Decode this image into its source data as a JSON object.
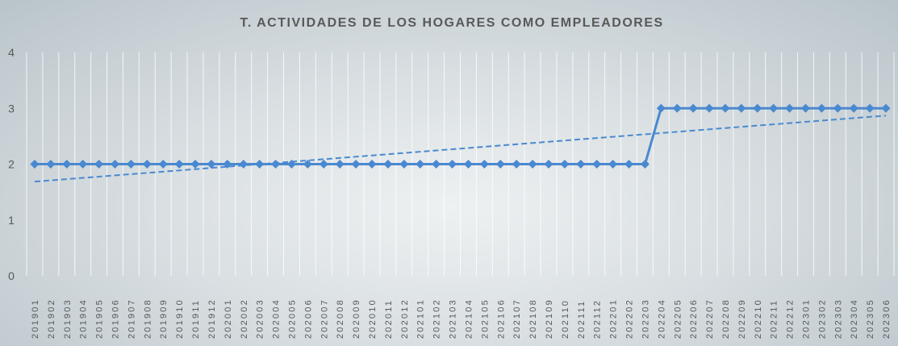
{
  "chart_data": {
    "type": "line",
    "title": "T. ACTIVIDADES DE LOS HOGARES COMO EMPLEADORES",
    "categories": [
      "201901",
      "201902",
      "201903",
      "201904",
      "201905",
      "201906",
      "201907",
      "201908",
      "201909",
      "201910",
      "201911",
      "201912",
      "202001",
      "202002",
      "202003",
      "202004",
      "202005",
      "202006",
      "202007",
      "202008",
      "202009",
      "202010",
      "202011",
      "202012",
      "202101",
      "202102",
      "202103",
      "202104",
      "202105",
      "202106",
      "202107",
      "202108",
      "202109",
      "202110",
      "202111",
      "202112",
      "202201",
      "202202",
      "202203",
      "202204",
      "202205",
      "202206",
      "202207",
      "202208",
      "202209",
      "202210",
      "202211",
      "202212",
      "202301",
      "202302",
      "202303",
      "202304",
      "202305",
      "202306"
    ],
    "series": [
      {
        "color": "#4a89d0",
        "values": [
          2,
          2,
          2,
          2,
          2,
          2,
          2,
          2,
          2,
          2,
          2,
          2,
          2,
          2,
          2,
          2,
          2,
          2,
          2,
          2,
          2,
          2,
          2,
          2,
          2,
          2,
          2,
          2,
          2,
          2,
          2,
          2,
          2,
          2,
          2,
          2,
          2,
          2,
          2,
          3,
          3,
          3,
          3,
          3,
          3,
          3,
          3,
          3,
          3,
          3,
          3,
          3,
          3,
          3
        ]
      }
    ],
    "ylim": [
      0,
      4
    ],
    "yticks": [
      0,
      1,
      2,
      3,
      4
    ],
    "grid": true,
    "trendline": true
  }
}
